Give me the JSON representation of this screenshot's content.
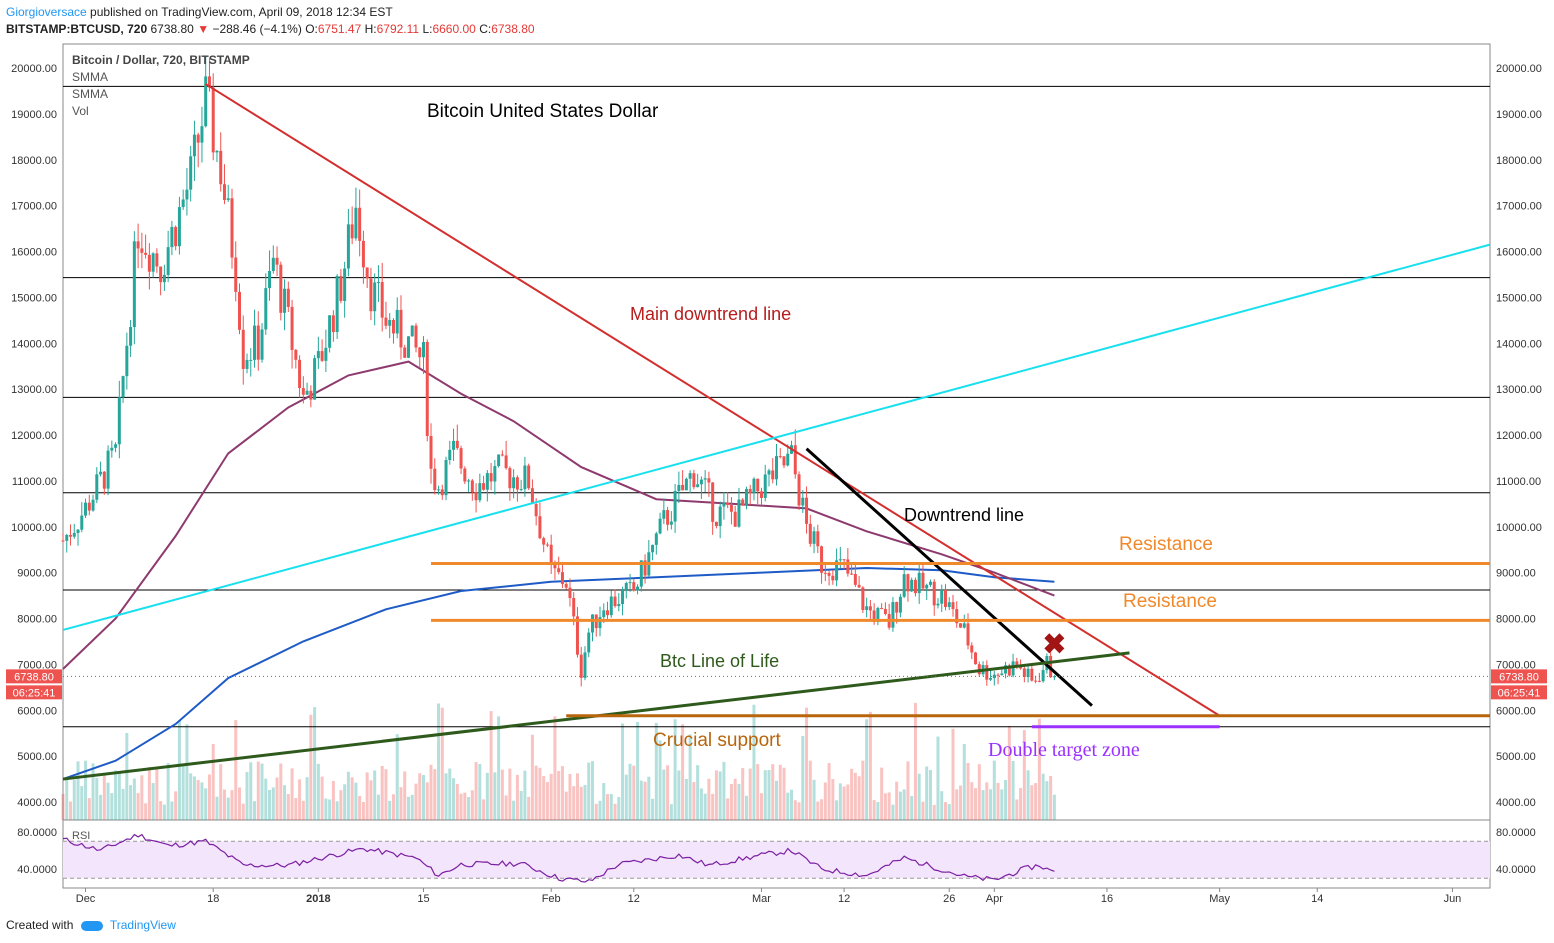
{
  "header": {
    "author": "Giorgioversace",
    "published_text": "published on TradingView.com, April 09, 2018 12:34 EST",
    "symbol": "BITSTAMP:BTCUSD, 720",
    "last": "6738.80",
    "change": "−288.46 (−4.1%)",
    "o_label": "O:",
    "o_value": "6751.47",
    "h_label": "H:",
    "h_value": "6792.11",
    "l_label": "L:",
    "l_value": "6660.00",
    "c_label": "C:",
    "c_value": "6738.80"
  },
  "legend": {
    "title": "Bitcoin / Dollar, 720, BITSTAMP",
    "indicators": [
      "SMMA",
      "SMMA",
      "Vol"
    ]
  },
  "price_tag": {
    "value": "6738.80",
    "countdown": "06:25:41"
  },
  "rsi_label": "RSI",
  "footer": {
    "created_with": "Created with",
    "brand": "TradingView"
  },
  "colors": {
    "up": "#26a69a",
    "down": "#ef5350",
    "main_downtrend": "#d32f2f",
    "uptrend": "#18e0ee",
    "life_line": "#2e5a1c",
    "support": "#b8650c",
    "resistance": "#f0892b",
    "sma_slow": "#1e5bc6",
    "sma_fast": "#8e3a6e",
    "target": "#9b30ff",
    "rsi": "#7b1fa2",
    "rsi_band": "#f3e5fb"
  },
  "chart_data": {
    "type": "candlestick",
    "title": "Bitcoin United States Dollar",
    "price_axis": {
      "min": 3800,
      "max": 20500,
      "ticks": [
        20000,
        19000,
        18000,
        17000,
        16000,
        15000,
        14000,
        13000,
        12000,
        11000,
        10000,
        9000,
        8000,
        7000,
        6000,
        5000,
        4000
      ]
    },
    "price_tick_labels": [
      "20000.00",
      "19000.00",
      "18000.00",
      "17000.00",
      "16000.00",
      "15000.00",
      "14000.00",
      "13000.00",
      "12000.00",
      "11000.00",
      "10000.00",
      "9000.00",
      "8000.00",
      "7000.00",
      "6000.00",
      "5000.00",
      "4000.00"
    ],
    "x_tick_labels": [
      "Dec",
      "18",
      "2018",
      "15",
      "Feb",
      "12",
      "Mar",
      "12",
      "26",
      "Apr",
      "16",
      "May",
      "14",
      "Jun"
    ],
    "x_tick_dates": [
      "2017-12-01",
      "2017-12-18",
      "2018-01-01",
      "2018-01-15",
      "2018-02-01",
      "2018-02-12",
      "2018-03-01",
      "2018-03-12",
      "2018-03-26",
      "2018-04-01",
      "2018-04-16",
      "2018-05-01",
      "2018-05-14",
      "2018-06-01"
    ],
    "x_range": [
      "2017-11-28",
      "2018-06-06"
    ],
    "close_path": [
      [
        "2017-11-28",
        9700
      ],
      [
        "2017-12-01",
        10400
      ],
      [
        "2017-12-05",
        11600
      ],
      [
        "2017-12-08",
        16500
      ],
      [
        "2017-12-11",
        15700
      ],
      [
        "2017-12-13",
        16600
      ],
      [
        "2017-12-15",
        17600
      ],
      [
        "2017-12-17",
        19300
      ],
      [
        "2017-12-19",
        17800
      ],
      [
        "2017-12-21",
        15600
      ],
      [
        "2017-12-22",
        13800
      ],
      [
        "2017-12-24",
        14000
      ],
      [
        "2017-12-26",
        15800
      ],
      [
        "2017-12-28",
        14400
      ],
      [
        "2017-12-30",
        12800
      ],
      [
        "2018-01-01",
        13500
      ],
      [
        "2018-01-04",
        15300
      ],
      [
        "2018-01-06",
        17000
      ],
      [
        "2018-01-08",
        15200
      ],
      [
        "2018-01-10",
        14500
      ],
      [
        "2018-01-13",
        14000
      ],
      [
        "2018-01-15",
        13600
      ],
      [
        "2018-01-16",
        11200
      ],
      [
        "2018-01-17",
        10900
      ],
      [
        "2018-01-19",
        11600
      ],
      [
        "2018-01-22",
        10900
      ],
      [
        "2018-01-25",
        11200
      ],
      [
        "2018-01-29",
        11000
      ],
      [
        "2018-02-01",
        9000
      ],
      [
        "2018-02-03",
        8800
      ],
      [
        "2018-02-05",
        6900
      ],
      [
        "2018-02-06",
        7700
      ],
      [
        "2018-02-08",
        8300
      ],
      [
        "2018-02-12",
        8600
      ],
      [
        "2018-02-16",
        10100
      ],
      [
        "2018-02-20",
        11200
      ],
      [
        "2018-02-23",
        10300
      ],
      [
        "2018-02-26",
        10300
      ],
      [
        "2018-03-01",
        10900
      ],
      [
        "2018-03-05",
        11500
      ],
      [
        "2018-03-07",
        10000
      ],
      [
        "2018-03-09",
        9200
      ],
      [
        "2018-03-12",
        9100
      ],
      [
        "2018-03-15",
        8200
      ],
      [
        "2018-03-18",
        7900
      ],
      [
        "2018-03-20",
        8900
      ],
      [
        "2018-03-22",
        8700
      ],
      [
        "2018-03-25",
        8500
      ],
      [
        "2018-03-28",
        7700
      ],
      [
        "2018-03-30",
        6900
      ],
      [
        "2018-04-01",
        6800
      ],
      [
        "2018-04-04",
        7000
      ],
      [
        "2018-04-06",
        6600
      ],
      [
        "2018-04-08",
        7000
      ],
      [
        "2018-04-09",
        6738.8
      ]
    ],
    "smma_slow": [
      [
        "2017-11-28",
        4500
      ],
      [
        "2017-12-05",
        4900
      ],
      [
        "2017-12-13",
        5700
      ],
      [
        "2017-12-20",
        6700
      ],
      [
        "2017-12-30",
        7500
      ],
      [
        "2018-01-10",
        8200
      ],
      [
        "2018-01-20",
        8600
      ],
      [
        "2018-02-01",
        8800
      ],
      [
        "2018-02-15",
        8900
      ],
      [
        "2018-03-01",
        9000
      ],
      [
        "2018-03-15",
        9100
      ],
      [
        "2018-03-25",
        9050
      ],
      [
        "2018-04-01",
        8900
      ],
      [
        "2018-04-09",
        8800
      ]
    ],
    "smma_fast": [
      [
        "2017-11-28",
        6900
      ],
      [
        "2017-12-05",
        8000
      ],
      [
        "2017-12-13",
        9800
      ],
      [
        "2017-12-20",
        11600
      ],
      [
        "2017-12-28",
        12600
      ],
      [
        "2018-01-05",
        13300
      ],
      [
        "2018-01-13",
        13600
      ],
      [
        "2018-01-20",
        12900
      ],
      [
        "2018-01-27",
        12300
      ],
      [
        "2018-02-05",
        11300
      ],
      [
        "2018-02-15",
        10600
      ],
      [
        "2018-02-25",
        10500
      ],
      [
        "2018-03-07",
        10400
      ],
      [
        "2018-03-15",
        9900
      ],
      [
        "2018-03-25",
        9400
      ],
      [
        "2018-04-01",
        9000
      ],
      [
        "2018-04-09",
        8500
      ]
    ],
    "volume_note": "volume histogram bars shown at bottom of price pane",
    "rsi_axis": {
      "ticks": [
        80,
        40
      ],
      "tick_labels": [
        "80.0000",
        "40.0000"
      ],
      "min": 20,
      "max": 90,
      "band": [
        30,
        70
      ]
    },
    "rsi_path": [
      [
        "2017-11-28",
        72
      ],
      [
        "2017-12-03",
        60
      ],
      [
        "2017-12-08",
        77
      ],
      [
        "2017-12-12",
        65
      ],
      [
        "2017-12-17",
        70
      ],
      [
        "2017-12-22",
        44
      ],
      [
        "2017-12-28",
        44
      ],
      [
        "2018-01-03",
        55
      ],
      [
        "2018-01-07",
        62
      ],
      [
        "2018-01-14",
        52
      ],
      [
        "2018-01-17",
        33
      ],
      [
        "2018-01-20",
        45
      ],
      [
        "2018-01-28",
        46
      ],
      [
        "2018-02-02",
        30
      ],
      [
        "2018-02-06",
        26
      ],
      [
        "2018-02-10",
        45
      ],
      [
        "2018-02-18",
        55
      ],
      [
        "2018-02-22",
        44
      ],
      [
        "2018-03-01",
        55
      ],
      [
        "2018-03-05",
        60
      ],
      [
        "2018-03-09",
        40
      ],
      [
        "2018-03-15",
        33
      ],
      [
        "2018-03-20",
        52
      ],
      [
        "2018-03-28",
        32
      ],
      [
        "2018-04-01",
        28
      ],
      [
        "2018-04-05",
        40
      ],
      [
        "2018-04-07",
        44
      ],
      [
        "2018-04-09",
        36
      ]
    ],
    "horizontal_levels": [
      19600,
      15430,
      12820,
      10740,
      8620,
      5640
    ],
    "resistance_levels": [
      {
        "label": "Resistance",
        "price": 9200,
        "from": "2018-01-16"
      },
      {
        "label": "Resistance",
        "price": 7960,
        "from": "2018-01-16"
      }
    ],
    "support_level": {
      "label": "Crucial support",
      "price": 5880,
      "from": "2018-02-03"
    },
    "trend_lines": [
      {
        "label": "Main downtrend line",
        "from": [
          "2017-12-17",
          19650
        ],
        "to": [
          "2018-05-01",
          5880
        ]
      },
      {
        "label": "Downtrend line",
        "from": [
          "2018-03-07",
          11700
        ],
        "to": [
          "2018-04-14",
          6100
        ]
      },
      {
        "label": "Btc Line of Life",
        "from": [
          "2017-11-28",
          4500
        ],
        "to": [
          "2018-04-19",
          7250
        ]
      },
      {
        "label": "",
        "from": [
          "2017-11-28",
          7750
        ],
        "to": [
          "2018-06-06",
          16150
        ]
      }
    ],
    "target_zone": {
      "label": "Double target zone",
      "price": 5640,
      "from": "2018-04-06",
      "to": "2018-05-01"
    },
    "annotations": [
      "Bitcoin United States Dollar",
      "Main downtrend line",
      "Downtrend line",
      "Resistance",
      "Resistance",
      "Btc Line of Life",
      "Crucial support",
      "Double target zone"
    ],
    "marker": {
      "symbol": "✖",
      "date": "2018-04-09",
      "price": 7450
    }
  }
}
